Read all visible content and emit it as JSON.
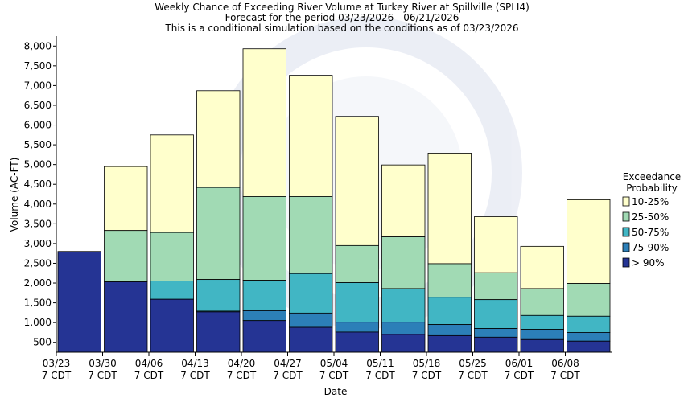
{
  "chart_data": {
    "type": "bar",
    "stacked": true,
    "title_lines": [
      "Weekly Chance of Exceeding River Volume at Turkey River at Spillville (SPLI4)",
      "Forecast for the period 03/23/2026 - 06/21/2026",
      "This is a conditional simulation based on the conditions as of 03/23/2026"
    ],
    "xlabel": "Date",
    "ylabel": "Volume (AC-FT)",
    "ylim": [
      250,
      8250
    ],
    "yticks": [
      "500",
      "1,000",
      "1,500",
      "2,000",
      "2,500",
      "3,000",
      "3,500",
      "4,000",
      "4,500",
      "5,000",
      "5,500",
      "6,000",
      "6,500",
      "7,000",
      "7,500",
      "8,000"
    ],
    "ytick_values": [
      500,
      1000,
      1500,
      2000,
      2500,
      3000,
      3500,
      4000,
      4500,
      5000,
      5500,
      6000,
      6500,
      7000,
      7500,
      8000
    ],
    "xticks": [
      {
        "date": "03/23",
        "tz": "7 CDT"
      },
      {
        "date": "03/30",
        "tz": "7 CDT"
      },
      {
        "date": "04/06",
        "tz": "7 CDT"
      },
      {
        "date": "04/13",
        "tz": "7 CDT"
      },
      {
        "date": "04/20",
        "tz": "7 CDT"
      },
      {
        "date": "04/27",
        "tz": "7 CDT"
      },
      {
        "date": "05/04",
        "tz": "7 CDT"
      },
      {
        "date": "05/11",
        "tz": "7 CDT"
      },
      {
        "date": "05/18",
        "tz": "7 CDT"
      },
      {
        "date": "05/25",
        "tz": "7 CDT"
      },
      {
        "date": "06/01",
        "tz": "7 CDT"
      },
      {
        "date": "06/08",
        "tz": "7 CDT"
      }
    ],
    "legend": {
      "title_lines": [
        "Exceedance",
        "Probability"
      ],
      "placement": "right",
      "entries": [
        {
          "label": "10-25%",
          "color": "#ffffcc"
        },
        {
          "label": "25-50%",
          "color": "#a1dab4"
        },
        {
          "label": "50-75%",
          "color": "#41b6c4"
        },
        {
          "label": "75-90%",
          "color": "#2c7fb8"
        },
        {
          "label": "> 90%",
          "color": "#253494"
        }
      ]
    },
    "bars": [
      {
        "week": "03/23",
        "gt90": 2800,
        "p75_90": 2800,
        "p50_75": 2800,
        "p25_50": 2800,
        "p10_25": 2800
      },
      {
        "week": "03/30",
        "gt90": 2030,
        "p75_90": 2030,
        "p50_75": 2030,
        "p25_50": 3330,
        "p10_25": 4950
      },
      {
        "week": "04/06",
        "gt90": 1590,
        "p75_90": 1590,
        "p50_75": 2050,
        "p25_50": 3280,
        "p10_25": 5750
      },
      {
        "week": "04/13",
        "gt90": 1270,
        "p75_90": 1290,
        "p50_75": 2090,
        "p25_50": 4420,
        "p10_25": 6870
      },
      {
        "week": "04/20",
        "gt90": 1050,
        "p75_90": 1300,
        "p50_75": 2070,
        "p25_50": 4190,
        "p10_25": 7930
      },
      {
        "week": "04/27",
        "gt90": 880,
        "p75_90": 1240,
        "p50_75": 2240,
        "p25_50": 4190,
        "p10_25": 7260
      },
      {
        "week": "05/04",
        "gt90": 760,
        "p75_90": 1010,
        "p50_75": 2010,
        "p25_50": 2950,
        "p10_25": 6220
      },
      {
        "week": "05/11",
        "gt90": 700,
        "p75_90": 1010,
        "p50_75": 1860,
        "p25_50": 3170,
        "p10_25": 4990
      },
      {
        "week": "05/18",
        "gt90": 670,
        "p75_90": 950,
        "p50_75": 1640,
        "p25_50": 2490,
        "p10_25": 5290
      },
      {
        "week": "05/25",
        "gt90": 630,
        "p75_90": 850,
        "p50_75": 1580,
        "p25_50": 2260,
        "p10_25": 3680
      },
      {
        "week": "06/01",
        "gt90": 570,
        "p75_90": 830,
        "p50_75": 1180,
        "p25_50": 1860,
        "p10_25": 2930
      },
      {
        "week": "06/08",
        "gt90": 530,
        "p75_90": 750,
        "p50_75": 1160,
        "p25_50": 1990,
        "p10_25": 4110
      }
    ],
    "grid": false
  }
}
